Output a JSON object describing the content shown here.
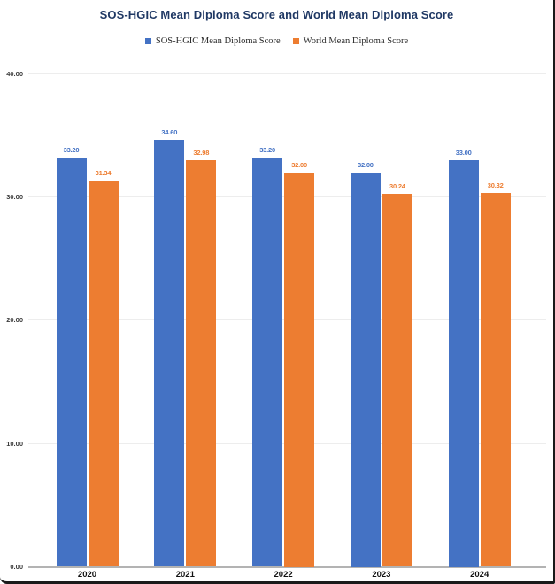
{
  "chart_data": {
    "type": "bar",
    "title": "SOS-HGIC Mean Diploma Score and World Mean Diploma Score",
    "categories": [
      "2020",
      "2021",
      "2022",
      "2023",
      "2024"
    ],
    "series": [
      {
        "name": "SOS-HGIC Mean Diploma Score",
        "color": "#4472C4",
        "values": [
          33.2,
          34.6,
          33.2,
          32.0,
          33.0
        ],
        "labels": [
          "33.20",
          "34.60",
          "33.20",
          "32.00",
          "33.00"
        ]
      },
      {
        "name": "World Mean Diploma Score",
        "color": "#ED7D31",
        "values": [
          31.34,
          32.98,
          32.0,
          30.24,
          30.32
        ],
        "labels": [
          "31.34",
          "32.98",
          "32.00",
          "30.24",
          "30.32"
        ]
      }
    ],
    "xlabel": "",
    "ylabel": "",
    "ylim": [
      0,
      40
    ],
    "yticks": [
      {
        "value": 40,
        "label": "40.00"
      },
      {
        "value": 30,
        "label": "30.00"
      },
      {
        "value": 20,
        "label": "20.00"
      },
      {
        "value": 10,
        "label": "10.00"
      },
      {
        "value": 0,
        "label": "0.00"
      }
    ],
    "grid": true,
    "legend_position": "top"
  },
  "colors": {
    "title_text": "#1F3864",
    "axis_text": "#3d3d3d",
    "category_text": "#111111",
    "gridline": "#EDEDED",
    "axis_line": "#B3B3B3",
    "page_border": "#1A1A1A",
    "background": "#FFFFFF"
  }
}
